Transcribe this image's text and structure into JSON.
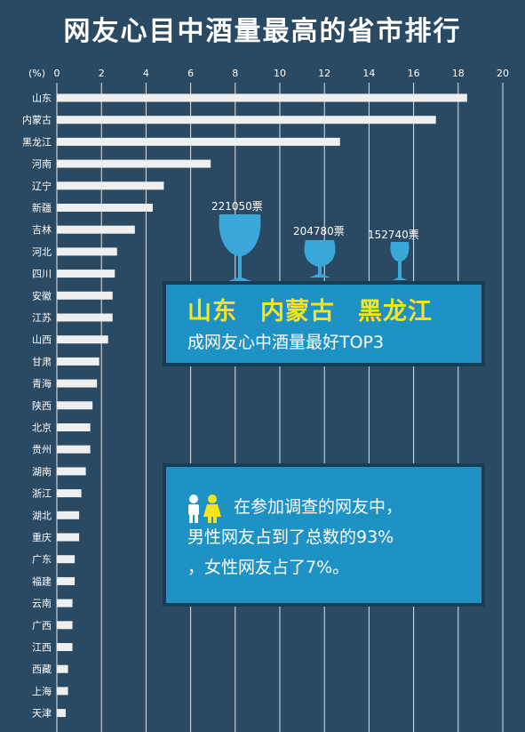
{
  "title": "网友心目中酒量最高的省市排行",
  "chart_data": {
    "type": "bar",
    "orientation": "horizontal",
    "unit_label": "(%)",
    "xlim": [
      0,
      20
    ],
    "ticks": [
      "0",
      "2",
      "4",
      "6",
      "8",
      "10",
      "12",
      "14",
      "16",
      "18",
      "20"
    ],
    "categories": [
      "山东",
      "内蒙古",
      "黑龙江",
      "河南",
      "辽宁",
      "新疆",
      "吉林",
      "河北",
      "四川",
      "安徽",
      "江苏",
      "山西",
      "甘肃",
      "青海",
      "陕西",
      "北京",
      "贵州",
      "湖南",
      "浙江",
      "湖北",
      "重庆",
      "广东",
      "福建",
      "云南",
      "广西",
      "江西",
      "西藏",
      "上海",
      "天津"
    ],
    "values": [
      18.4,
      17.0,
      12.7,
      6.9,
      4.8,
      4.3,
      3.5,
      2.7,
      2.6,
      2.5,
      2.5,
      2.3,
      1.9,
      1.8,
      1.6,
      1.5,
      1.5,
      1.3,
      1.1,
      1.0,
      1.0,
      0.8,
      0.8,
      0.7,
      0.7,
      0.7,
      0.5,
      0.5,
      0.4
    ],
    "grid": true
  },
  "votes": [
    {
      "label": "221050票"
    },
    {
      "label": "204780票"
    },
    {
      "label": "152740票"
    }
  ],
  "top3": {
    "names": [
      "山东",
      "内蒙古",
      "黑龙江"
    ],
    "subtitle": "成网友心中酒量最好TOP3"
  },
  "gender": {
    "icon": "couple-icon",
    "line1": "在参加调查的网友中，",
    "line2": "男性网友占到了总数的93%",
    "line3": "，女性网友占了7%。"
  },
  "colors": {
    "background": "#2a4a63",
    "bar": "#efefef",
    "box": "#1e92c4",
    "highlight": "#f6e51c",
    "glass": "#3aa8d8"
  }
}
